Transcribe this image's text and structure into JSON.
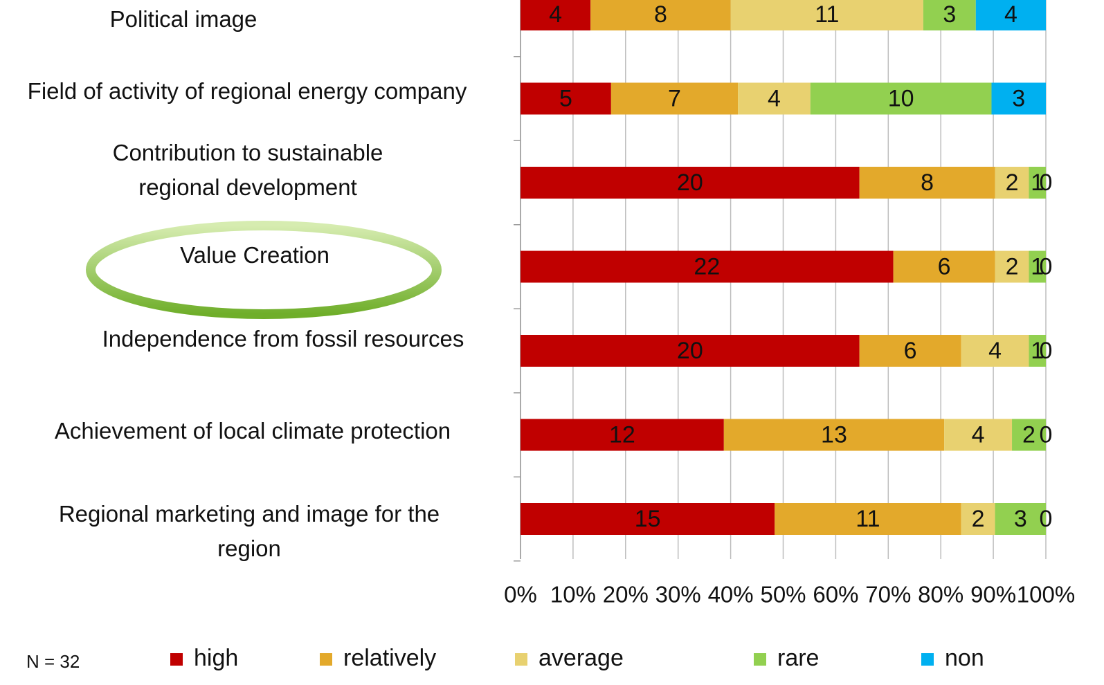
{
  "chart_data": {
    "type": "bar",
    "orientation": "horizontal",
    "stacked": "percent",
    "categories": [
      "Political image",
      "Field of activity of regional energy company",
      "Contribution to sustainable\nregional development",
      "Value Creation",
      "Independence from fossil resources",
      "Achievement of  local climate protection",
      "Regional marketing and image for the\nregion"
    ],
    "series": [
      {
        "name": "high",
        "color": "#c00000",
        "values": [
          4,
          5,
          20,
          22,
          20,
          12,
          15
        ]
      },
      {
        "name": "relatively",
        "color": "#e3a92b",
        "values": [
          8,
          7,
          8,
          6,
          6,
          13,
          11
        ]
      },
      {
        "name": "average",
        "color": "#e8d170",
        "values": [
          11,
          4,
          2,
          2,
          4,
          4,
          2
        ]
      },
      {
        "name": "rare",
        "color": "#92d050",
        "values": [
          3,
          10,
          1,
          1,
          1,
          2,
          3
        ]
      },
      {
        "name": "non",
        "color": "#00b0f0",
        "values": [
          4,
          3,
          0,
          0,
          0,
          0,
          0
        ]
      }
    ],
    "xlim": [
      0,
      100
    ],
    "xticks": [
      {
        "value": 0,
        "label": "0%"
      },
      {
        "value": 10,
        "label": "10%"
      },
      {
        "value": 20,
        "label": "20%"
      },
      {
        "value": 30,
        "label": "30%"
      },
      {
        "value": 40,
        "label": "40%"
      },
      {
        "value": 50,
        "label": "50%"
      },
      {
        "value": 60,
        "label": "60%"
      },
      {
        "value": 70,
        "label": "70%"
      },
      {
        "value": 80,
        "label": "80%"
      },
      {
        "value": 90,
        "label": "90%"
      },
      {
        "value": 100,
        "label": "100%"
      }
    ],
    "grid": true,
    "legend": "bottom",
    "note": "N = 32"
  }
}
